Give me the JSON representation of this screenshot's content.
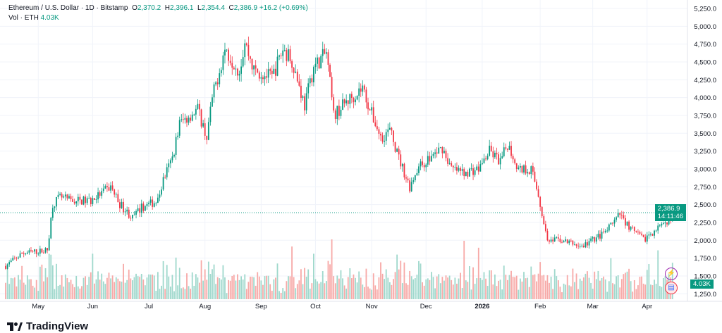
{
  "header": {
    "symbol": "Ethereum / U.S. Dollar · 1D · Bitstamp",
    "o_label": "O",
    "o": "2,370.2",
    "h_label": "H",
    "h": "2,396.1",
    "l_label": "L",
    "l": "2,354.4",
    "c_label": "C",
    "c": "2,386.9",
    "change": "+16.2 (+0.69%)",
    "vol_label": "Vol · ETH",
    "vol": "4.03K"
  },
  "price_tag": {
    "price": "2,386.9",
    "countdown": "14:11:46"
  },
  "volume_tag": "4.03K",
  "brand": "TradingView",
  "colors": {
    "up": "#089981",
    "down": "#f23645",
    "up_vol": "#9fd8cc",
    "down_vol": "#f7a9a7"
  },
  "chart_data": {
    "type": "candlestick",
    "title": "Ethereum / U.S. Dollar · 1D · Bitstamp",
    "y_ticks": [
      "5,250.0",
      "5,000.0",
      "4,750.0",
      "4,500.0",
      "4,250.0",
      "4,000.0",
      "3,750.0",
      "3,500.0",
      "3,250.0",
      "3,000.0",
      "2,750.0",
      "2,500.0",
      "2,250.0",
      "2,000.0",
      "1,750.0",
      "1,500.0",
      "1,250.0"
    ],
    "ylim": [
      1250,
      5250
    ],
    "x_ticks": [
      {
        "label": "May",
        "day": 18
      },
      {
        "label": "Jun",
        "day": 48
      },
      {
        "label": "Jul",
        "day": 79
      },
      {
        "label": "Aug",
        "day": 110
      },
      {
        "label": "Sep",
        "day": 141
      },
      {
        "label": "Oct",
        "day": 171
      },
      {
        "label": "Nov",
        "day": 202
      },
      {
        "label": "Dec",
        "day": 232
      },
      {
        "label": "2026",
        "day": 263
      },
      {
        "label": "Feb",
        "day": 295
      },
      {
        "label": "Mar",
        "day": 324
      },
      {
        "label": "Apr",
        "day": 354
      }
    ],
    "days": 368,
    "close_anchors": [
      [
        0,
        1640
      ],
      [
        9,
        1815
      ],
      [
        23,
        1860
      ],
      [
        26,
        2510
      ],
      [
        30,
        2600
      ],
      [
        36,
        2555
      ],
      [
        47,
        2555
      ],
      [
        58,
        2750
      ],
      [
        63,
        2510
      ],
      [
        70,
        2310
      ],
      [
        75,
        2460
      ],
      [
        84,
        2555
      ],
      [
        87,
        2850
      ],
      [
        92,
        3150
      ],
      [
        96,
        3640
      ],
      [
        106,
        3840
      ],
      [
        111,
        3440
      ],
      [
        114,
        3990
      ],
      [
        121,
        4680
      ],
      [
        129,
        4380
      ],
      [
        132,
        4780
      ],
      [
        137,
        4380
      ],
      [
        147,
        4280
      ],
      [
        153,
        4680
      ],
      [
        158,
        4530
      ],
      [
        165,
        3890
      ],
      [
        170,
        4430
      ],
      [
        177,
        4630
      ],
      [
        181,
        3750
      ],
      [
        188,
        3940
      ],
      [
        197,
        4140
      ],
      [
        201,
        3840
      ],
      [
        207,
        3440
      ],
      [
        212,
        3540
      ],
      [
        217,
        3150
      ],
      [
        223,
        2750
      ],
      [
        227,
        3000
      ],
      [
        234,
        3150
      ],
      [
        241,
        3300
      ],
      [
        246,
        3000
      ],
      [
        252,
        2950
      ],
      [
        261,
        3000
      ],
      [
        267,
        3250
      ],
      [
        273,
        3100
      ],
      [
        277,
        3350
      ],
      [
        283,
        3000
      ],
      [
        290,
        3000
      ],
      [
        294,
        2650
      ],
      [
        297,
        2210
      ],
      [
        300,
        1960
      ],
      [
        305,
        2010
      ],
      [
        312,
        1960
      ],
      [
        318,
        1910
      ],
      [
        324,
        2010
      ],
      [
        331,
        2110
      ],
      [
        339,
        2360
      ],
      [
        345,
        2160
      ],
      [
        352,
        2010
      ],
      [
        359,
        2160
      ],
      [
        365,
        2210
      ],
      [
        368,
        2387
      ]
    ],
    "last_close": 2386.9
  }
}
